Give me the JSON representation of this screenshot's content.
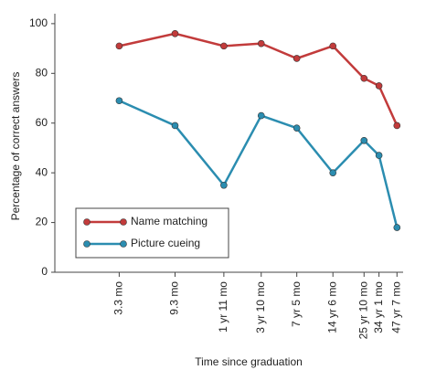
{
  "chart_data": {
    "type": "line",
    "x_label": "Time since graduation",
    "y_label": "Percentage of correct answers",
    "x": [
      3.3,
      9.3,
      23,
      46,
      89,
      174,
      310,
      409,
      571
    ],
    "xscale": "log",
    "xlim": [
      1,
      640
    ],
    "xticks": [
      {
        "value": 3.3,
        "label": "3.3 mo"
      },
      {
        "value": 9.3,
        "label": "9.3 mo"
      },
      {
        "value": 23,
        "label": "1 yr 11 mo"
      },
      {
        "value": 46,
        "label": "3 yr 10 mo"
      },
      {
        "value": 89,
        "label": "7 yr 5 mo"
      },
      {
        "value": 174,
        "label": "14 yr 6 mo"
      },
      {
        "value": 310,
        "label": "25 yr 10 mo"
      },
      {
        "value": 409,
        "label": "34 yr 1 mo"
      },
      {
        "value": 571,
        "label": "47 yr 7 mo"
      }
    ],
    "ylim": [
      0,
      104
    ],
    "yticks": [
      0,
      20,
      40,
      60,
      80,
      100
    ],
    "legend": "lower left",
    "series": [
      {
        "name": "Name matching",
        "color": "#c23b3b",
        "values": [
          91,
          96,
          91,
          92,
          86,
          91,
          78,
          75,
          59
        ]
      },
      {
        "name": "Picture cueing",
        "color": "#2b8db0",
        "values": [
          69,
          59,
          35,
          63,
          58,
          40,
          53,
          47,
          18
        ]
      }
    ]
  }
}
